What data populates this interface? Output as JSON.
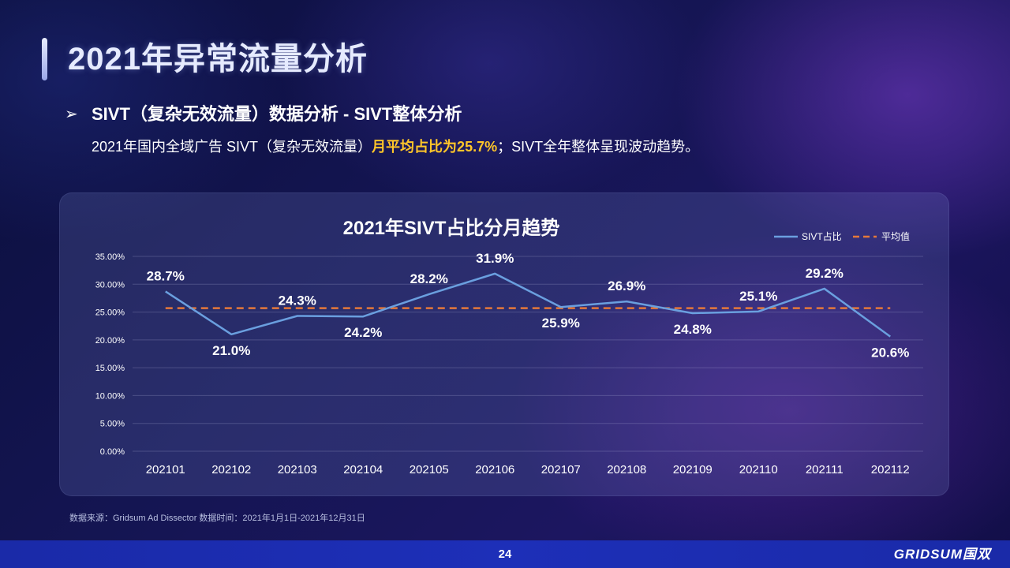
{
  "page": {
    "title": "2021年异常流量分析",
    "subtitle": "SIVT（复杂无效流量）数据分析 - SIVT整体分析",
    "bullet": "➢",
    "summary_prefix": "2021年国内全域广告 SIVT（复杂无效流量）",
    "summary_highlight": "月平均占比为25.7%",
    "summary_suffix": "；SIVT全年整体呈现波动趋势。",
    "source": "数据来源：Gridsum Ad Dissector 数据时间：2021年1月1日-2021年12月31日",
    "page_number": "24",
    "brand": "GRIDSUM国双"
  },
  "colors": {
    "series_line": "#6a9fdf",
    "average_line": "#e5783a",
    "highlight_text": "#ffc629",
    "footer_bar": "#1d2fb8"
  },
  "chart_data": {
    "type": "line",
    "title": "2021年SIVT占比分月趋势",
    "categories": [
      "202101",
      "202102",
      "202103",
      "202104",
      "202105",
      "202106",
      "202107",
      "202108",
      "202109",
      "202110",
      "202111",
      "202112"
    ],
    "series": [
      {
        "name": "SIVT占比",
        "values": [
          28.7,
          21.0,
          24.3,
          24.2,
          28.2,
          31.9,
          25.9,
          26.9,
          24.8,
          25.1,
          29.2,
          20.6
        ],
        "labels": [
          "28.7%",
          "21.0%",
          "24.3%",
          "24.2%",
          "28.2%",
          "31.9%",
          "25.9%",
          "26.9%",
          "24.8%",
          "25.1%",
          "29.2%",
          "20.6%"
        ]
      },
      {
        "name": "平均值",
        "values": [
          25.7,
          25.7,
          25.7,
          25.7,
          25.7,
          25.7,
          25.7,
          25.7,
          25.7,
          25.7,
          25.7,
          25.7
        ],
        "style": "dashed"
      }
    ],
    "ylim": [
      0,
      35
    ],
    "yticks": [
      0,
      5,
      10,
      15,
      20,
      25,
      30,
      35
    ],
    "ytick_labels": [
      "0.00%",
      "5.00%",
      "10.00%",
      "15.00%",
      "20.00%",
      "25.00%",
      "30.00%",
      "35.00%"
    ],
    "grid": true,
    "legend": "top-right"
  }
}
